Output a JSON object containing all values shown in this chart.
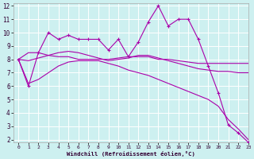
{
  "xlabel": "Windchill (Refroidissement éolien,°C)",
  "background_color": "#cdf0f0",
  "grid_color": "#ffffff",
  "line_color": "#aa00aa",
  "xlim": [
    -0.5,
    23
  ],
  "ylim": [
    1.8,
    12.2
  ],
  "xticks": [
    0,
    1,
    2,
    3,
    4,
    5,
    6,
    7,
    8,
    9,
    10,
    11,
    12,
    13,
    14,
    15,
    16,
    17,
    18,
    19,
    20,
    21,
    22,
    23
  ],
  "yticks": [
    2,
    3,
    4,
    5,
    6,
    7,
    8,
    9,
    10,
    11,
    12
  ],
  "line1_y": [
    8.0,
    6.0,
    8.5,
    10.0,
    9.5,
    9.8,
    9.5,
    9.5,
    9.5,
    8.7,
    9.5,
    8.2,
    9.3,
    10.8,
    12.0,
    10.5,
    11.0,
    11.0,
    9.5,
    7.5,
    5.5,
    3.1,
    2.5,
    1.8
  ],
  "line2_y": [
    8.0,
    8.5,
    8.5,
    8.3,
    8.2,
    8.2,
    8.0,
    8.0,
    8.0,
    8.0,
    8.1,
    8.2,
    8.2,
    8.2,
    8.0,
    8.0,
    7.9,
    7.8,
    7.7,
    7.7,
    7.7,
    7.7,
    7.7,
    7.7
  ],
  "line3_y": [
    8.0,
    7.9,
    8.1,
    8.3,
    8.5,
    8.6,
    8.5,
    8.3,
    8.1,
    7.9,
    8.0,
    8.1,
    8.3,
    8.3,
    8.1,
    7.9,
    7.7,
    7.5,
    7.3,
    7.2,
    7.1,
    7.1,
    7.0,
    7.0
  ],
  "line4_y": [
    8.0,
    6.2,
    6.5,
    7.0,
    7.5,
    7.8,
    7.9,
    7.9,
    7.9,
    7.7,
    7.5,
    7.2,
    7.0,
    6.8,
    6.5,
    6.2,
    5.9,
    5.6,
    5.3,
    5.0,
    4.5,
    3.5,
    2.8,
    2.0
  ]
}
